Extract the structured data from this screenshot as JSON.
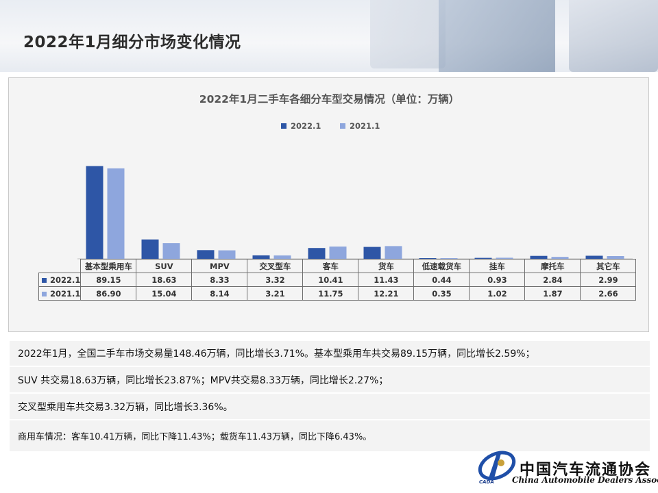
{
  "page": {
    "title": "2022年1月细分市场变化情况"
  },
  "colors": {
    "series_2022": "#2e56a6",
    "series_2021": "#8ea6dd",
    "panel_bg": "#f4f4f4",
    "text_row_bg": "#f3f3f3",
    "logo_blue": "#1f4fa8"
  },
  "chart_data": {
    "type": "bar",
    "title": "2022年1月二手车各细分车型交易情况（单位：万辆）",
    "categories": [
      "基本型乘用车",
      "SUV",
      "MPV",
      "交叉型车",
      "客车",
      "货车",
      "低速载货车",
      "挂车",
      "摩托车",
      "其它车"
    ],
    "series": [
      {
        "name": "2022.1",
        "values": [
          89.15,
          18.63,
          8.33,
          3.32,
          10.41,
          11.43,
          0.44,
          0.93,
          2.84,
          2.99
        ]
      },
      {
        "name": "2021.1",
        "values": [
          86.9,
          15.04,
          8.14,
          3.21,
          11.75,
          12.21,
          0.35,
          1.02,
          1.87,
          2.66
        ]
      }
    ],
    "table_values": {
      "2022.1": [
        "89.15",
        "18.63",
        "8.33",
        "3.32",
        "10.41",
        "11.43",
        "0.44",
        "0.93",
        "2.84",
        "2.99"
      ],
      "2021.1": [
        "86.90",
        "15.04",
        "8.14",
        "3.21",
        "11.75",
        "12.21",
        "0.35",
        "1.02",
        "1.87",
        "2.66"
      ]
    },
    "legend_position": "top-center",
    "ylim": [
      0,
      100
    ],
    "grid": false
  },
  "legend": {
    "series_2022": "2022.1",
    "series_2021": "2021.1"
  },
  "summary": {
    "line1": "2022年1月，全国二手车市场交易量148.46万辆，同比增长3.71%。基本型乘用车共交易89.15万辆，同比增长2.59%；",
    "line2": "SUV 共交易18.63万辆，同比增长23.87%；MPV共交易8.33万辆，同比增长2.27%；",
    "line3": "交叉型乘用车共交易3.32万辆，同比增长3.36%。",
    "line4": "商用车情况：客车10.41万辆，同比下降11.43%；载货车11.43万辆，同比下降6.43%。"
  },
  "logo": {
    "name_cn": "中国汽车流通协会",
    "name_en": "China Automobile Dealers Association",
    "abbr": "CADA"
  }
}
